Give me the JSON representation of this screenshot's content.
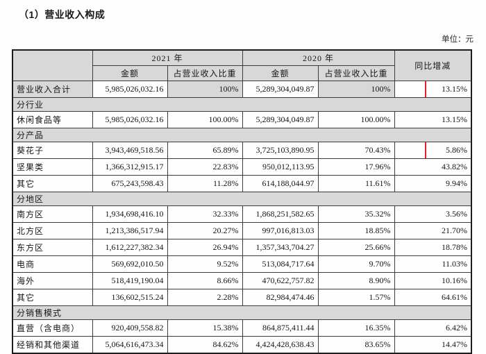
{
  "page": {
    "title": "（1）营业收入构成",
    "unit_label": "单位：元"
  },
  "colors": {
    "header_bg": "#d8d8d8",
    "highlight_box": "#e12525"
  },
  "table": {
    "header": {
      "year_2021": "2021 年",
      "year_2020": "2020 年",
      "yoy": "同比增减",
      "amount": "金额",
      "share": "占营业收入比重"
    },
    "rows": [
      {
        "type": "total",
        "label": "营业收入合计",
        "a2021": "5,985,026,032.16",
        "s2021": "100%",
        "a2020": "5,289,304,049.87",
        "s2020": "100%",
        "yoy": "13.15%",
        "highlight": true
      },
      {
        "type": "section",
        "label": "分行业"
      },
      {
        "type": "data",
        "label": "休闲食品等",
        "a2021": "5,985,026,032.16",
        "s2021": "100.00%",
        "a2020": "5,289,304,049.87",
        "s2020": "100.00%",
        "yoy": "13.15%"
      },
      {
        "type": "section",
        "label": "分产品"
      },
      {
        "type": "data",
        "label": "葵花子",
        "a2021": "3,943,469,518.56",
        "s2021": "65.89%",
        "a2020": "3,725,103,890.95",
        "s2020": "70.43%",
        "yoy": "5.86%",
        "highlight": true
      },
      {
        "type": "data",
        "label": "坚果类",
        "a2021": "1,366,312,915.17",
        "s2021": "22.83%",
        "a2020": "950,012,113.95",
        "s2020": "17.96%",
        "yoy": "43.82%"
      },
      {
        "type": "data",
        "label": "其它",
        "a2021": "675,243,598.43",
        "s2021": "11.28%",
        "a2020": "614,188,044.97",
        "s2020": "11.61%",
        "yoy": "9.94%"
      },
      {
        "type": "section",
        "label": "分地区"
      },
      {
        "type": "data",
        "label": "南方区",
        "a2021": "1,934,698,416.10",
        "s2021": "32.33%",
        "a2020": "1,868,251,582.65",
        "s2020": "35.32%",
        "yoy": "3.56%"
      },
      {
        "type": "data",
        "label": "北方区",
        "a2021": "1,213,386,517.94",
        "s2021": "20.27%",
        "a2020": "997,016,813.03",
        "s2020": "18.85%",
        "yoy": "21.70%"
      },
      {
        "type": "data",
        "label": "东方区",
        "a2021": "1,612,227,382.34",
        "s2021": "26.94%",
        "a2020": "1,357,343,704.27",
        "s2020": "25.66%",
        "yoy": "18.78%"
      },
      {
        "type": "data",
        "label": "电商",
        "a2021": "569,692,010.50",
        "s2021": "9.52%",
        "a2020": "513,084,717.64",
        "s2020": "9.70%",
        "yoy": "11.03%"
      },
      {
        "type": "data",
        "label": "海外",
        "a2021": "518,419,190.04",
        "s2021": "8.66%",
        "a2020": "470,622,757.82",
        "s2020": "8.90%",
        "yoy": "10.16%"
      },
      {
        "type": "data",
        "label": "其它",
        "a2021": "136,602,515.24",
        "s2021": "2.28%",
        "a2020": "82,984,474.46",
        "s2020": "1.57%",
        "yoy": "64.61%"
      },
      {
        "type": "section",
        "label": "分销售模式"
      },
      {
        "type": "data",
        "label": "直营（含电商）",
        "a2021": "920,409,558.82",
        "s2021": "15.38%",
        "a2020": "864,875,411.44",
        "s2020": "16.35%",
        "yoy": "6.42%"
      },
      {
        "type": "data",
        "label": "经销和其他渠道",
        "a2021": "5,064,616,473.34",
        "s2021": "84.62%",
        "a2020": "4,424,428,638.43",
        "s2020": "83.65%",
        "yoy": "14.47%"
      }
    ]
  }
}
